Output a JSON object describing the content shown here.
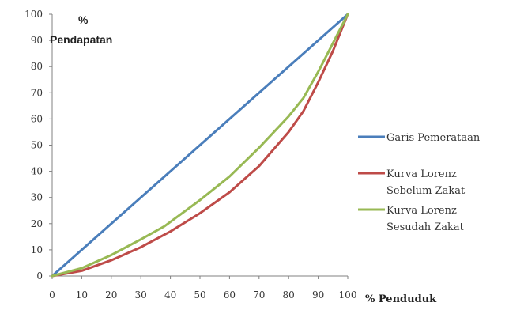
{
  "chart_data": {
    "type": "line",
    "ylabel_line1": "%",
    "ylabel_line2": "Pendapatan",
    "xlabel": "% Penduduk",
    "xlim": [
      0,
      100
    ],
    "ylim": [
      0,
      100
    ],
    "xticks": [
      0,
      10,
      20,
      30,
      40,
      50,
      60,
      70,
      80,
      90,
      100
    ],
    "yticks": [
      0,
      10,
      20,
      30,
      40,
      50,
      60,
      70,
      80,
      90,
      100
    ],
    "grid": false,
    "legend_position": "right",
    "series": [
      {
        "name": "Garis Pemerataan",
        "color": "#4a7ebb",
        "x": [
          0,
          100
        ],
        "y": [
          0,
          100
        ]
      },
      {
        "name": "Kurva Lorenz Sebelum Zakat",
        "name_lines": [
          "Kurva Lorenz",
          "Sebelum Zakat"
        ],
        "color": "#be4b48",
        "x": [
          0,
          10,
          20,
          30,
          40,
          50,
          60,
          70,
          80,
          85,
          90,
          95,
          100
        ],
        "y": [
          0,
          2,
          6,
          11,
          17,
          24,
          32,
          42,
          55,
          63,
          74,
          86,
          100
        ]
      },
      {
        "name": "Kurva Lorenz Sesudah Zakat",
        "name_lines": [
          "Kurva Lorenz",
          "Sesudah Zakat"
        ],
        "color": "#98b954",
        "x": [
          0,
          10,
          20,
          30,
          38,
          50,
          60,
          70,
          80,
          85,
          90,
          95,
          100
        ],
        "y": [
          0,
          3,
          8,
          14,
          19,
          29,
          38,
          49,
          61,
          68,
          78,
          89,
          100
        ]
      }
    ]
  }
}
